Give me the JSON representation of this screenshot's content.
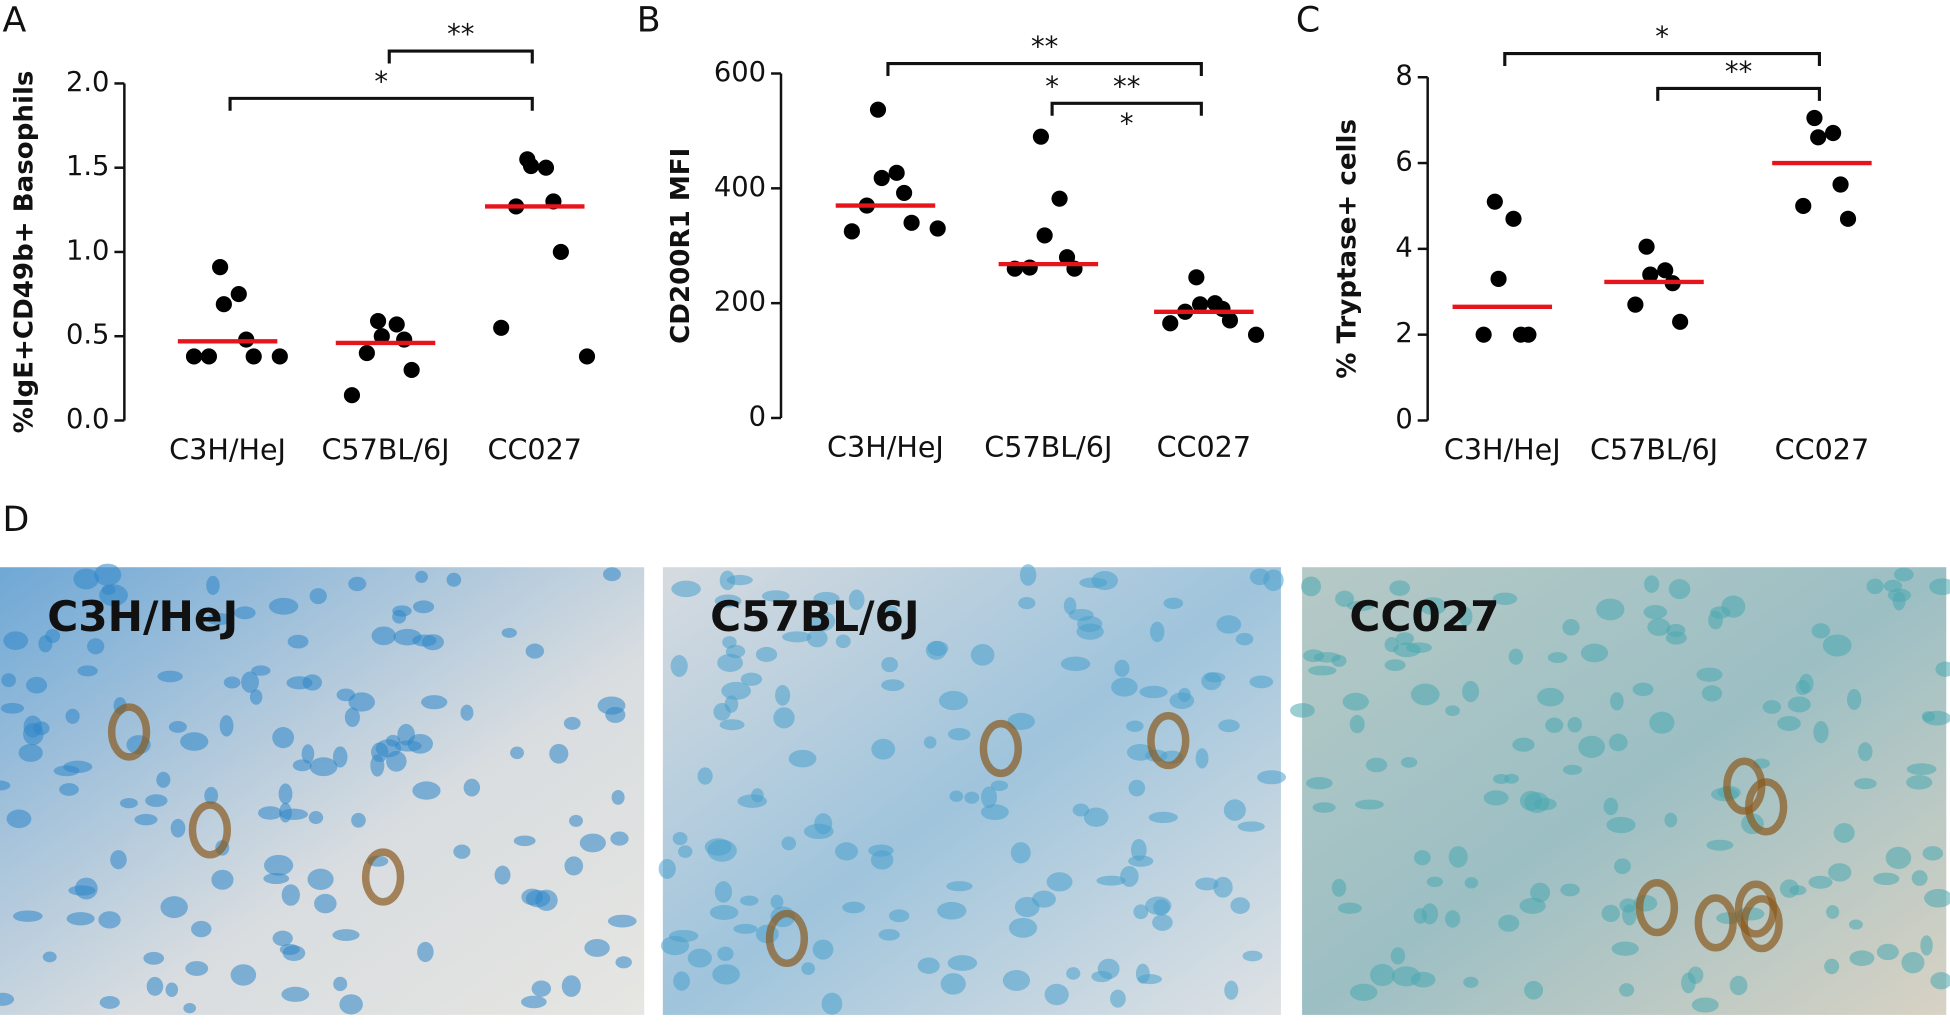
{
  "chart_data": [
    {
      "type": "dot",
      "panel": "A",
      "ylabel": "%IgE+CD49b+ Basophils",
      "categories": [
        "C3H/HeJ",
        "C57BL/6J",
        "CC027"
      ],
      "points": [
        [
          0.91,
          0.75,
          0.69,
          0.48,
          0.38,
          0.38,
          0.38,
          0.38
        ],
        [
          0.59,
          0.57,
          0.5,
          0.48,
          0.4,
          0.3,
          0.15
        ],
        [
          1.55,
          1.5,
          1.51,
          1.3,
          1.27,
          1.0,
          0.55,
          0.38
        ]
      ],
      "means": [
        0.47,
        0.46,
        1.27
      ],
      "point_color": "#000000",
      "mean_color": "#e8141b",
      "ylim": [
        0,
        2.0
      ],
      "yticks": [
        {
          "value": 0,
          "label": "0.0"
        },
        0.5,
        {
          "value": 1,
          "label": "1.0"
        },
        1.5,
        {
          "value": 2,
          "label": "2.0"
        }
      ],
      "annotations": [
        {
          "from": 1,
          "to": 2,
          "labels": [
            "**"
          ]
        },
        {
          "from": 0,
          "to": 2,
          "labels": [
            "*"
          ]
        }
      ]
    },
    {
      "type": "dot",
      "panel": "B",
      "ylabel": "CD200R1 MFI",
      "categories": [
        "C3H/HeJ",
        "C57BL/6J",
        "CC027"
      ],
      "points": [
        [
          537,
          427,
          418,
          392,
          370,
          340,
          325,
          330
        ],
        [
          490,
          382,
          318,
          280,
          262,
          260,
          260
        ],
        [
          245,
          200,
          198,
          190,
          185,
          170,
          165,
          145
        ]
      ],
      "means": [
        370,
        268,
        185
      ],
      "point_color": "#000000",
      "mean_color": "#e8141b",
      "ylim": [
        0,
        600
      ],
      "yticks": [
        0,
        200,
        400,
        600
      ],
      "annotations": [
        {
          "from": 0,
          "to": 2,
          "labels": [
            "**"
          ]
        },
        {
          "from": 1,
          "to": 2,
          "labels": [
            "*",
            "**",
            "*"
          ]
        }
      ]
    },
    {
      "type": "dot",
      "panel": "C",
      "ylabel": "% Tryptase+ cells",
      "categories": [
        "C3H/HeJ",
        "C57BL/6J",
        "CC027"
      ],
      "points": [
        [
          5.1,
          4.7,
          3.3,
          2.0,
          2.0,
          2.0
        ],
        [
          4.05,
          3.5,
          3.4,
          3.2,
          2.7,
          2.3
        ],
        [
          7.05,
          6.7,
          6.6,
          5.5,
          5.0,
          4.7
        ]
      ],
      "means": [
        2.65,
        3.23,
        6.0
      ],
      "point_color": "#000000",
      "mean_color": "#e8141b",
      "ylim": [
        0,
        8
      ],
      "yticks": [
        0,
        2,
        4,
        6,
        8
      ],
      "annotations": [
        {
          "from": 0,
          "to": 2,
          "labels": [
            "*"
          ]
        },
        {
          "from": 1,
          "to": 2,
          "labels": [
            "**"
          ]
        }
      ]
    }
  ],
  "micrographs": {
    "panel": "D",
    "images": [
      {
        "label": "C3H/HeJ"
      },
      {
        "label": "C57BL/6J"
      },
      {
        "label": "CC027"
      }
    ]
  }
}
